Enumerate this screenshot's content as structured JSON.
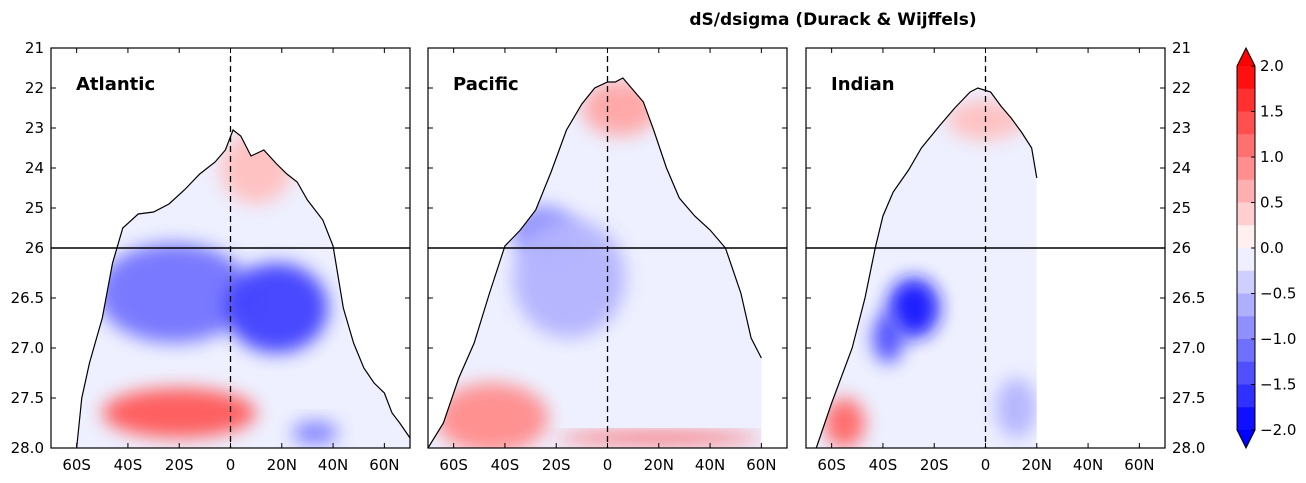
{
  "chart_data": {
    "type": "heatmap",
    "title": "dS/dsigma (Durack & Wijffels)",
    "y_axis": {
      "ticks": [
        "21",
        "22",
        "23",
        "24",
        "25",
        "26",
        "26.5",
        "27.0",
        "27.5",
        "28.0"
      ],
      "note": "sigma density axis; 21-26 linear upper half, 26-28 stretched lower half",
      "inverted": true
    },
    "x_axis": {
      "ticks": [
        "60S",
        "40S",
        "20S",
        "0",
        "20N",
        "40N",
        "60N"
      ],
      "lat_values": [
        -60,
        -40,
        -20,
        0,
        20,
        40,
        60
      ],
      "xlim": [
        -70,
        70
      ]
    },
    "reference_lines": {
      "equator_dashed": 0,
      "sigma_solid": 26
    },
    "panels": [
      {
        "name": "Atlantic",
        "outcrop": [
          [
            -60,
            28.0
          ],
          [
            -58,
            27.5
          ],
          [
            -55,
            27.15
          ],
          [
            -50,
            26.7
          ],
          [
            -46,
            26.15
          ],
          [
            -42,
            25.5
          ],
          [
            -36,
            25.15
          ],
          [
            -30,
            25.1
          ],
          [
            -24,
            24.9
          ],
          [
            -18,
            24.55
          ],
          [
            -12,
            24.15
          ],
          [
            -6,
            23.85
          ],
          [
            -2,
            23.55
          ],
          [
            1,
            23.05
          ],
          [
            4,
            23.2
          ],
          [
            8,
            23.7
          ],
          [
            13,
            23.55
          ],
          [
            18,
            23.9
          ],
          [
            22,
            24.15
          ],
          [
            26,
            24.35
          ],
          [
            30,
            24.8
          ],
          [
            36,
            25.3
          ],
          [
            40,
            25.95
          ],
          [
            44,
            26.6
          ],
          [
            48,
            26.95
          ],
          [
            52,
            27.2
          ],
          [
            56,
            27.35
          ],
          [
            60,
            27.45
          ],
          [
            63,
            27.65
          ],
          [
            66,
            27.75
          ],
          [
            70,
            27.9
          ]
        ],
        "features": [
          {
            "lat": -22,
            "sigma": 26.45,
            "value": -1.1,
            "rx": 30,
            "rs": 0.5
          },
          {
            "lat": 18,
            "sigma": 26.6,
            "value": -1.5,
            "rx": 20,
            "rs": 0.45
          },
          {
            "lat": -20,
            "sigma": 27.65,
            "value": 1.3,
            "rx": 30,
            "rs": 0.25
          },
          {
            "lat": 33,
            "sigma": 27.85,
            "value": -1.0,
            "rx": 9,
            "rs": 0.12
          },
          {
            "lat": 10,
            "sigma": 24.0,
            "value": 0.5,
            "rx": 14,
            "rs": 0.9
          }
        ]
      },
      {
        "name": "Pacific",
        "outcrop": [
          [
            -70,
            28.0
          ],
          [
            -64,
            27.75
          ],
          [
            -58,
            27.3
          ],
          [
            -52,
            26.95
          ],
          [
            -46,
            26.45
          ],
          [
            -40,
            25.95
          ],
          [
            -34,
            25.55
          ],
          [
            -28,
            25.05
          ],
          [
            -22,
            24.1
          ],
          [
            -16,
            23.05
          ],
          [
            -10,
            22.4
          ],
          [
            -5,
            22.0
          ],
          [
            0,
            21.85
          ],
          [
            3,
            21.85
          ],
          [
            6,
            21.75
          ],
          [
            10,
            22.05
          ],
          [
            14,
            22.35
          ],
          [
            18,
            23.05
          ],
          [
            23,
            24.0
          ],
          [
            28,
            24.75
          ],
          [
            34,
            25.2
          ],
          [
            40,
            25.55
          ],
          [
            46,
            26.0
          ],
          [
            52,
            26.45
          ],
          [
            56,
            26.9
          ],
          [
            60,
            27.1
          ]
        ],
        "features": [
          {
            "lat": -25,
            "sigma": 25.6,
            "value": -0.9,
            "rx": 12,
            "rs": 0.5
          },
          {
            "lat": -15,
            "sigma": 26.3,
            "value": -0.6,
            "rx": 22,
            "rs": 0.6
          },
          {
            "lat": -45,
            "sigma": 27.7,
            "value": 0.9,
            "rx": 22,
            "rs": 0.35
          },
          {
            "lat": 5,
            "sigma": 22.5,
            "value": 0.7,
            "rx": 15,
            "rs": 0.7
          },
          {
            "lat": 20,
            "sigma": 27.9,
            "value": 1.5,
            "rx": 40,
            "rs": 0.05
          }
        ]
      },
      {
        "name": "Indian",
        "outcrop": [
          [
            -66,
            28.0
          ],
          [
            -60,
            27.55
          ],
          [
            -52,
            27.0
          ],
          [
            -47,
            26.5
          ],
          [
            -43,
            26.0
          ],
          [
            -40,
            25.2
          ],
          [
            -36,
            24.6
          ],
          [
            -30,
            24.05
          ],
          [
            -25,
            23.5
          ],
          [
            -18,
            22.95
          ],
          [
            -12,
            22.5
          ],
          [
            -6,
            22.1
          ],
          [
            -3,
            22.0
          ],
          [
            2,
            22.1
          ],
          [
            6,
            22.45
          ],
          [
            10,
            22.75
          ],
          [
            14,
            23.1
          ],
          [
            18,
            23.5
          ],
          [
            20,
            24.25
          ]
        ],
        "east_edge_lat": 20,
        "features": [
          {
            "lat": -28,
            "sigma": 26.6,
            "value": -1.8,
            "rx": 10,
            "rs": 0.3
          },
          {
            "lat": -38,
            "sigma": 26.9,
            "value": -1.4,
            "rx": 6,
            "rs": 0.25
          },
          {
            "lat": -55,
            "sigma": 27.75,
            "value": 1.2,
            "rx": 8,
            "rs": 0.25
          },
          {
            "lat": 12,
            "sigma": 27.6,
            "value": -0.6,
            "rx": 8,
            "rs": 0.3
          },
          {
            "lat": 0,
            "sigma": 22.8,
            "value": 0.5,
            "rx": 15,
            "rs": 0.5
          }
        ]
      }
    ],
    "colorbar": {
      "ticks": [
        "2.0",
        "1.5",
        "1.0",
        "0.5",
        "0.0",
        "−0.5",
        "−1.0",
        "−1.5",
        "−2.0"
      ],
      "range": [
        -2.0,
        2.0
      ],
      "levels": 16,
      "cmap": "bwr",
      "extend": "both"
    }
  },
  "colors": {
    "positive": "#ff0000",
    "negative": "#0000ff",
    "zero": "#ffffff",
    "frame": "#000000"
  }
}
